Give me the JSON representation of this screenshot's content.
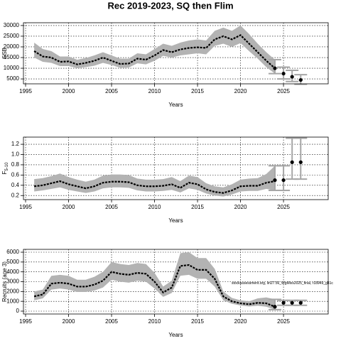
{
  "title": "Rec 2019-2023, SQ then Flim",
  "chart_data": [
    {
      "type": "line",
      "xlabel": "Years",
      "ylabel": "SSB",
      "xlim": [
        1994.75,
        2030.2
      ],
      "xticks": [
        1995,
        2000,
        2005,
        2010,
        2015,
        2020,
        2025
      ],
      "ylim": [
        2700,
        31300
      ],
      "yticks": [
        5000,
        10000,
        15000,
        20000,
        25000,
        30000
      ],
      "grid": true,
      "color": "#000000",
      "band_color": "#b3b3b3",
      "error_color": "#a6a6a6",
      "x": [
        1996,
        1997,
        1998,
        1999,
        2000,
        2001,
        2002,
        2003,
        2004,
        2005,
        2006,
        2007,
        2008,
        2009,
        2010,
        2011,
        2012,
        2013,
        2014,
        2015,
        2016,
        2017,
        2018,
        2019,
        2020,
        2021,
        2022,
        2023,
        2024
      ],
      "values": [
        18000,
        15500,
        15000,
        13000,
        13200,
        11800,
        12500,
        13500,
        15000,
        13500,
        12000,
        12200,
        14500,
        14000,
        16000,
        18500,
        17500,
        18800,
        19500,
        19800,
        19500,
        23500,
        25000,
        23500,
        25500,
        21500,
        17500,
        13500,
        10000
      ],
      "upper": [
        22000,
        19000,
        18000,
        15500,
        15500,
        14000,
        14800,
        16000,
        17500,
        16000,
        14500,
        14500,
        17000,
        16500,
        19000,
        21500,
        20500,
        22000,
        23000,
        23500,
        23000,
        27500,
        29000,
        27500,
        30000,
        26000,
        21500,
        17500,
        14000
      ],
      "lower": [
        15000,
        13000,
        12500,
        11000,
        11000,
        10000,
        10500,
        11200,
        12500,
        11500,
        10200,
        10300,
        12300,
        11800,
        13500,
        15800,
        15000,
        16000,
        16500,
        17000,
        16500,
        20500,
        21500,
        20000,
        21800,
        18000,
        14500,
        10500,
        7500
      ],
      "projection": {
        "x": [
          2024,
          2025,
          2026,
          2027
        ],
        "values": [
          10000,
          7500,
          6000,
          4500
        ],
        "lower": [
          7500,
          5000,
          3800,
          2500
        ],
        "upper": [
          14000,
          10500,
          9000,
          7000
        ]
      }
    },
    {
      "type": "line",
      "xlabel": "Years",
      "ylabel": "F",
      "ylabel_subscript": "5-10",
      "xlim": [
        1994.75,
        2030.2
      ],
      "xticks": [
        1995,
        2000,
        2005,
        2010,
        2015,
        2020,
        2025
      ],
      "ylim": [
        0.12,
        1.34
      ],
      "yticks": [
        0.2,
        0.4,
        0.6,
        0.8,
        1.0,
        1.2
      ],
      "grid": true,
      "color": "#000000",
      "band_color": "#b3b3b3",
      "error_color": "#a6a6a6",
      "x": [
        1996,
        1997,
        1998,
        1999,
        2000,
        2001,
        2002,
        2003,
        2004,
        2005,
        2006,
        2007,
        2008,
        2009,
        2010,
        2011,
        2012,
        2013,
        2014,
        2015,
        2016,
        2017,
        2018,
        2019,
        2020,
        2021,
        2022,
        2023,
        2024
      ],
      "values": [
        0.38,
        0.4,
        0.44,
        0.48,
        0.42,
        0.38,
        0.34,
        0.38,
        0.45,
        0.47,
        0.47,
        0.46,
        0.4,
        0.38,
        0.38,
        0.39,
        0.42,
        0.35,
        0.45,
        0.42,
        0.32,
        0.27,
        0.25,
        0.3,
        0.38,
        0.39,
        0.39,
        0.45,
        0.48
      ],
      "upper": [
        0.52,
        0.54,
        0.58,
        0.63,
        0.56,
        0.51,
        0.47,
        0.51,
        0.59,
        0.61,
        0.61,
        0.6,
        0.53,
        0.51,
        0.51,
        0.52,
        0.56,
        0.48,
        0.59,
        0.56,
        0.44,
        0.38,
        0.36,
        0.42,
        0.51,
        0.53,
        0.54,
        0.62,
        0.78
      ],
      "lower": [
        0.28,
        0.3,
        0.33,
        0.36,
        0.31,
        0.28,
        0.25,
        0.28,
        0.34,
        0.36,
        0.36,
        0.35,
        0.3,
        0.28,
        0.28,
        0.29,
        0.31,
        0.26,
        0.34,
        0.31,
        0.24,
        0.2,
        0.18,
        0.22,
        0.28,
        0.29,
        0.29,
        0.33,
        0.3
      ],
      "projection": {
        "x": [
          2024,
          2025,
          2026,
          2027
        ],
        "values": [
          0.5,
          0.5,
          0.85,
          0.85
        ],
        "lower": [
          0.3,
          0.3,
          0.52,
          0.52
        ],
        "upper": [
          0.78,
          0.78,
          1.32,
          1.32
        ]
      }
    },
    {
      "type": "line",
      "xlabel": "Years",
      "ylabel": "Recruits (age 3)",
      "annotation": "stockassessment.org, lin27.56_WgMixs2025_final, r18949_g81c",
      "xlim": [
        1994.75,
        2030.2
      ],
      "xticks": [
        1995,
        2000,
        2005,
        2010,
        2015,
        2020,
        2025
      ],
      "ylim": [
        -290,
        6290
      ],
      "yticks": [
        0,
        1000,
        2000,
        3000,
        4000,
        5000,
        6000
      ],
      "grid": true,
      "color": "#000000",
      "band_color": "#b3b3b3",
      "error_color": "#a6a6a6",
      "x": [
        1996,
        1997,
        1998,
        1999,
        2000,
        2001,
        2002,
        2003,
        2004,
        2005,
        2006,
        2007,
        2008,
        2009,
        2010,
        2011,
        2012,
        2013,
        2014,
        2015,
        2016,
        2017,
        2018,
        2019,
        2020,
        2021,
        2022,
        2023,
        2024
      ],
      "values": [
        1500,
        1700,
        2800,
        2900,
        2800,
        2500,
        2500,
        2700,
        3100,
        4000,
        3800,
        3700,
        3900,
        3800,
        3000,
        1900,
        2400,
        4600,
        4700,
        4200,
        4200,
        3300,
        1500,
        1000,
        800,
        700,
        850,
        800,
        450
      ],
      "upper": [
        2000,
        2200,
        3600,
        3700,
        3600,
        3200,
        3200,
        3500,
        4000,
        5000,
        4800,
        4700,
        4900,
        4800,
        3900,
        2500,
        3100,
        5900,
        6000,
        5400,
        5400,
        4300,
        2000,
        1350,
        1100,
        1000,
        1300,
        1400,
        1200
      ],
      "lower": [
        1100,
        1300,
        2200,
        2300,
        2200,
        1950,
        1950,
        2100,
        2400,
        3200,
        3000,
        2900,
        3100,
        3000,
        2300,
        1450,
        1850,
        3600,
        3700,
        3300,
        3300,
        2500,
        1100,
        750,
        580,
        480,
        550,
        450,
        150
      ],
      "projection": {
        "x": [
          2024,
          2025,
          2026,
          2027
        ],
        "values": [
          450,
          850,
          850,
          850
        ],
        "lower": [
          150,
          600,
          600,
          600
        ],
        "upper": [
          1200,
          1100,
          1100,
          1100
        ]
      }
    }
  ]
}
